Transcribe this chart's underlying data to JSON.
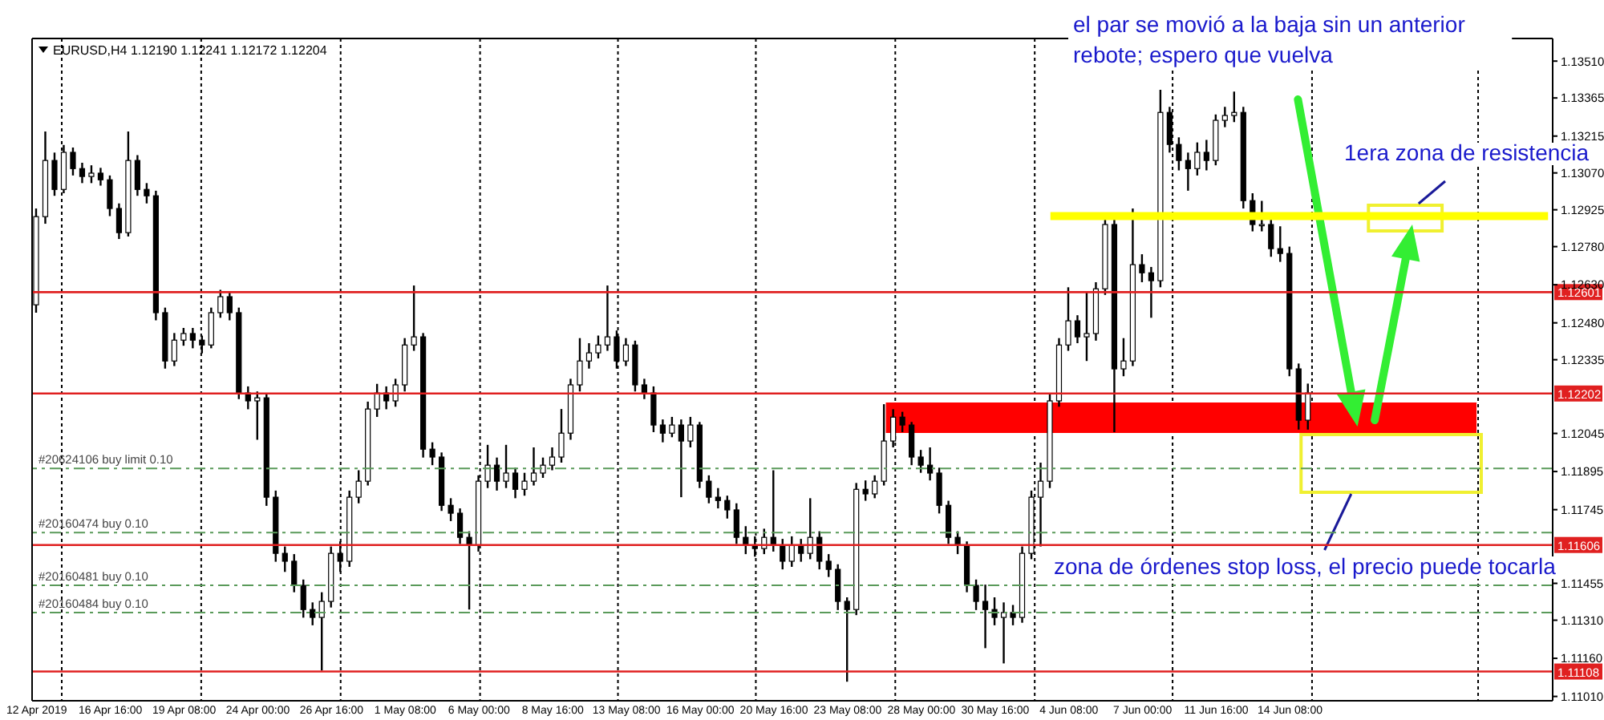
{
  "chart_data": {
    "type": "candlestick",
    "title": "EURUSD,H4  1.12190 1.12241 1.12172 1.12204",
    "categories": [
      "12 Apr 2019",
      null,
      null,
      null,
      null,
      null,
      null,
      null,
      "16 Apr 16:00",
      null,
      null,
      null,
      null,
      null,
      null,
      null,
      "19 Apr 08:00",
      null,
      null,
      null,
      null,
      null,
      null,
      null,
      "24 Apr 00:00",
      null,
      null,
      null,
      null,
      null,
      null,
      null,
      "26 Apr 16:00",
      null,
      null,
      null,
      null,
      null,
      null,
      null,
      "1 May 08:00",
      null,
      null,
      null,
      null,
      null,
      null,
      null,
      "6 May 00:00",
      null,
      null,
      null,
      null,
      null,
      null,
      null,
      "8 May 16:00",
      null,
      null,
      null,
      null,
      null,
      null,
      null,
      "13 May 08:00",
      null,
      null,
      null,
      null,
      null,
      null,
      null,
      "16 May 00:00",
      null,
      null,
      null,
      null,
      null,
      null,
      null,
      "20 May 16:00",
      null,
      null,
      null,
      null,
      null,
      null,
      null,
      "23 May 08:00",
      null,
      null,
      null,
      null,
      null,
      null,
      null,
      "28 May 00:00",
      null,
      null,
      null,
      null,
      null,
      null,
      null,
      "30 May 16:00",
      null,
      null,
      null,
      null,
      null,
      null,
      null,
      "4 Jun 08:00",
      null,
      null,
      null,
      null,
      null,
      null,
      null,
      "7 Jun 00:00",
      null,
      null,
      null,
      null,
      null,
      null,
      null,
      "11 Jun 16:00",
      null,
      null,
      null,
      null,
      null,
      null,
      null,
      "14 Jun 08:00",
      null,
      null,
      null,
      null,
      null,
      null,
      null,
      null,
      null,
      null,
      null,
      null,
      null,
      null,
      null,
      null,
      null,
      null,
      null,
      null,
      null,
      null,
      null,
      null,
      null,
      null,
      null,
      null
    ],
    "ohlc": [
      [
        1.12551,
        1.1293,
        1.1252,
        1.12898
      ],
      [
        1.12898,
        1.13233,
        1.1287,
        1.13119
      ],
      [
        1.13119,
        1.1315,
        1.1298,
        1.13005
      ],
      [
        1.13005,
        1.1318,
        1.1299,
        1.13151
      ],
      [
        1.13151,
        1.1317,
        1.1306,
        1.13087
      ],
      [
        1.13087,
        1.1311,
        1.1303,
        1.13056
      ],
      [
        1.13056,
        1.131,
        1.1303,
        1.13069
      ],
      [
        1.13069,
        1.1309,
        1.1302,
        1.13043
      ],
      [
        1.13043,
        1.1306,
        1.129,
        1.1293
      ],
      [
        1.1293,
        1.1295,
        1.1281,
        1.12835
      ],
      [
        1.12835,
        1.13233,
        1.1282,
        1.13119
      ],
      [
        1.13119,
        1.1314,
        1.1298,
        1.13005
      ],
      [
        1.13005,
        1.1303,
        1.1295,
        1.1298
      ],
      [
        1.1298,
        1.13,
        1.1249,
        1.1252
      ],
      [
        1.1252,
        1.1254,
        1.123,
        1.1233
      ],
      [
        1.1233,
        1.1244,
        1.1231,
        1.12412
      ],
      [
        1.12412,
        1.1246,
        1.1239,
        1.12438
      ],
      [
        1.12438,
        1.1246,
        1.1238,
        1.12412
      ],
      [
        1.12412,
        1.1243,
        1.1236,
        1.12393
      ],
      [
        1.12393,
        1.1254,
        1.1238,
        1.1252
      ],
      [
        1.1252,
        1.1261,
        1.125,
        1.12583
      ],
      [
        1.12583,
        1.126,
        1.1249,
        1.1252
      ],
      [
        1.1252,
        1.1254,
        1.1218,
        1.12204
      ],
      [
        1.12204,
        1.1223,
        1.1214,
        1.12173
      ],
      [
        1.12173,
        1.1221,
        1.1202,
        1.12185
      ],
      [
        1.12185,
        1.122,
        1.1176,
        1.11794
      ],
      [
        1.11794,
        1.1182,
        1.1154,
        1.11573
      ],
      [
        1.11573,
        1.116,
        1.115,
        1.11542
      ],
      [
        1.11542,
        1.1157,
        1.1142,
        1.11447
      ],
      [
        1.11447,
        1.1147,
        1.1132,
        1.11352
      ],
      [
        1.11352,
        1.1138,
        1.1129,
        1.11321
      ],
      [
        1.11321,
        1.1142,
        1.11112,
        1.11384
      ],
      [
        1.11384,
        1.116,
        1.1136,
        1.11573
      ],
      [
        1.11573,
        1.1162,
        1.115,
        1.11542
      ],
      [
        1.11542,
        1.1182,
        1.1152,
        1.11794
      ],
      [
        1.11794,
        1.119,
        1.1177,
        1.11857
      ],
      [
        1.11857,
        1.1217,
        1.1184,
        1.12141
      ],
      [
        1.12141,
        1.1224,
        1.1211,
        1.12204
      ],
      [
        1.12204,
        1.1223,
        1.1214,
        1.12173
      ],
      [
        1.12173,
        1.1226,
        1.1215,
        1.12236
      ],
      [
        1.12236,
        1.1242,
        1.1221,
        1.12393
      ],
      [
        1.12393,
        1.12627,
        1.1237,
        1.12425
      ],
      [
        1.12425,
        1.1244,
        1.1195,
        1.11983
      ],
      [
        1.11983,
        1.1201,
        1.1192,
        1.11952
      ],
      [
        1.11952,
        1.1197,
        1.1174,
        1.11762
      ],
      [
        1.11762,
        1.1179,
        1.117,
        1.11731
      ],
      [
        1.11731,
        1.1175,
        1.1161,
        1.11636
      ],
      [
        1.11636,
        1.1166,
        1.11352,
        1.11605
      ],
      [
        1.11605,
        1.1188,
        1.1158,
        1.11857
      ],
      [
        1.11857,
        1.12,
        1.1183,
        1.1192
      ],
      [
        1.1192,
        1.1195,
        1.1182,
        1.11857
      ],
      [
        1.11857,
        1.12,
        1.1183,
        1.11889
      ],
      [
        1.11889,
        1.1191,
        1.1179,
        1.11825
      ],
      [
        1.11825,
        1.1189,
        1.118,
        1.11857
      ],
      [
        1.11857,
        1.1199,
        1.1184,
        1.11889
      ],
      [
        1.11889,
        1.1195,
        1.1187,
        1.1192
      ],
      [
        1.1192,
        1.1199,
        1.119,
        1.11952
      ],
      [
        1.11952,
        1.12141,
        1.1193,
        1.12046
      ],
      [
        1.12046,
        1.1226,
        1.1202,
        1.12236
      ],
      [
        1.12236,
        1.1242,
        1.1221,
        1.1233
      ],
      [
        1.1233,
        1.124,
        1.123,
        1.12362
      ],
      [
        1.12362,
        1.1243,
        1.1234,
        1.12393
      ],
      [
        1.12393,
        1.12627,
        1.1237,
        1.12425
      ],
      [
        1.12425,
        1.1245,
        1.123,
        1.1233
      ],
      [
        1.1233,
        1.1242,
        1.1231,
        1.12393
      ],
      [
        1.12393,
        1.1241,
        1.1221,
        1.12236
      ],
      [
        1.12236,
        1.1226,
        1.1218,
        1.12204
      ],
      [
        1.12204,
        1.1223,
        1.1205,
        1.12078
      ],
      [
        1.12078,
        1.121,
        1.1201,
        1.12046
      ],
      [
        1.12046,
        1.1211,
        1.1203,
        1.12078
      ],
      [
        1.12078,
        1.121,
        1.11794,
        1.12015
      ],
      [
        1.12015,
        1.1211,
        1.1199,
        1.12078
      ],
      [
        1.12078,
        1.1209,
        1.1183,
        1.11857
      ],
      [
        1.11857,
        1.1188,
        1.1177,
        1.11794
      ],
      [
        1.11794,
        1.1183,
        1.1175,
        1.11781
      ],
      [
        1.11781,
        1.118,
        1.1171,
        1.11744
      ],
      [
        1.11744,
        1.1177,
        1.1161,
        1.11636
      ],
      [
        1.11636,
        1.1168,
        1.1157,
        1.11605
      ],
      [
        1.11605,
        1.1164,
        1.1156,
        1.11592
      ],
      [
        1.11592,
        1.1167,
        1.1157,
        1.11636
      ],
      [
        1.11636,
        1.119,
        1.1158,
        1.11605
      ],
      [
        1.11605,
        1.1163,
        1.1151,
        1.11542
      ],
      [
        1.11542,
        1.1164,
        1.1152,
        1.11605
      ],
      [
        1.11605,
        1.1163,
        1.1154,
        1.11573
      ],
      [
        1.11573,
        1.1179,
        1.1155,
        1.11636
      ],
      [
        1.11636,
        1.1166,
        1.1151,
        1.11542
      ],
      [
        1.11542,
        1.1157,
        1.1148,
        1.1151
      ],
      [
        1.1151,
        1.1153,
        1.1135,
        1.11384
      ],
      [
        1.11384,
        1.114,
        1.11068,
        1.11352
      ],
      [
        1.11352,
        1.1185,
        1.1133,
        1.11825
      ],
      [
        1.11825,
        1.1186,
        1.1178,
        1.11807
      ],
      [
        1.11807,
        1.1188,
        1.1179,
        1.11857
      ],
      [
        1.11857,
        1.1216,
        1.1184,
        1.12015
      ],
      [
        1.12015,
        1.1214,
        1.1199,
        1.12109
      ],
      [
        1.12109,
        1.1213,
        1.1205,
        1.12078
      ],
      [
        1.12078,
        1.1209,
        1.1192,
        1.11952
      ],
      [
        1.11952,
        1.1198,
        1.1189,
        1.1192
      ],
      [
        1.1192,
        1.1199,
        1.1186,
        1.11889
      ],
      [
        1.11889,
        1.1191,
        1.1173,
        1.11762
      ],
      [
        1.11762,
        1.1178,
        1.1161,
        1.11636
      ],
      [
        1.11636,
        1.1166,
        1.1157,
        1.11605
      ],
      [
        1.11605,
        1.1162,
        1.1142,
        1.11447
      ],
      [
        1.11447,
        1.1147,
        1.1135,
        1.11384
      ],
      [
        1.11384,
        1.1145,
        1.112,
        1.11352
      ],
      [
        1.11352,
        1.114,
        1.1129,
        1.11321
      ],
      [
        1.11321,
        1.1138,
        1.1114,
        1.1134
      ],
      [
        1.1134,
        1.1137,
        1.1129,
        1.11321
      ],
      [
        1.11321,
        1.116,
        1.113,
        1.11573
      ],
      [
        1.11573,
        1.1182,
        1.1155,
        1.11794
      ],
      [
        1.11794,
        1.1193,
        1.116,
        1.11857
      ],
      [
        1.11857,
        1.122,
        1.1183,
        1.12173
      ],
      [
        1.12173,
        1.1242,
        1.1215,
        1.12393
      ],
      [
        1.12393,
        1.1262,
        1.1237,
        1.12488
      ],
      [
        1.12488,
        1.1251,
        1.124,
        1.12425
      ],
      [
        1.12425,
        1.126,
        1.1233,
        1.12438
      ],
      [
        1.12438,
        1.1264,
        1.1241,
        1.12614
      ],
      [
        1.12614,
        1.129,
        1.1259,
        1.12867
      ],
      [
        1.12867,
        1.129,
        1.1205,
        1.12299
      ],
      [
        1.12299,
        1.1242,
        1.1227,
        1.1233
      ],
      [
        1.1233,
        1.1293,
        1.1231,
        1.12709
      ],
      [
        1.12709,
        1.1275,
        1.1264,
        1.12677
      ],
      [
        1.12677,
        1.127,
        1.125,
        1.12646
      ],
      [
        1.12646,
        1.13397,
        1.1262,
        1.13308
      ],
      [
        1.13308,
        1.1333,
        1.1315,
        1.13182
      ],
      [
        1.13182,
        1.1321,
        1.1308,
        1.13119
      ],
      [
        1.13119,
        1.1315,
        1.13,
        1.13087
      ],
      [
        1.13087,
        1.1319,
        1.1306,
        1.13151
      ],
      [
        1.13151,
        1.132,
        1.1308,
        1.13119
      ],
      [
        1.13119,
        1.133,
        1.131,
        1.13277
      ],
      [
        1.13277,
        1.1333,
        1.1325,
        1.13296
      ],
      [
        1.13296,
        1.1339,
        1.1327,
        1.13308
      ],
      [
        1.13308,
        1.1333,
        1.1293,
        1.12961
      ],
      [
        1.12961,
        1.1299,
        1.1284,
        1.12867
      ],
      [
        1.12867,
        1.1296,
        1.1284,
        1.12867
      ],
      [
        1.12867,
        1.129,
        1.1274,
        1.12772
      ],
      [
        1.12772,
        1.1286,
        1.1272,
        1.12753
      ],
      [
        1.12753,
        1.1278,
        1.1227,
        1.12299
      ],
      [
        1.12299,
        1.1232,
        1.1206,
        1.12097
      ],
      [
        1.12097,
        1.12241,
        1.1206,
        1.12204
      ],
      null,
      null,
      null,
      null,
      null,
      null,
      null,
      null,
      null,
      null,
      null,
      null,
      null,
      null,
      null,
      null,
      null,
      null,
      null,
      null,
      null,
      null,
      null,
      null,
      null,
      null
    ],
    "series": [
      {
        "type": "line",
        "color": "#ffff00",
        "values": [
          null,
          null,
          null,
          null,
          null,
          null,
          null,
          null,
          null,
          null,
          null,
          null,
          null,
          null,
          null,
          null,
          null,
          null,
          null,
          null,
          null,
          null,
          null,
          null,
          null,
          null,
          null,
          null,
          null,
          null,
          null,
          null,
          null,
          null,
          null,
          null,
          null,
          null,
          null,
          null,
          null,
          null,
          null,
          null,
          null,
          null,
          null,
          null,
          null,
          null,
          null,
          null,
          null,
          null,
          null,
          null,
          null,
          null,
          null,
          null,
          null,
          null,
          null,
          null,
          null,
          null,
          null,
          null,
          null,
          null,
          null,
          null,
          null,
          null,
          null,
          null,
          null,
          null,
          null,
          null,
          null,
          null,
          null,
          null,
          null,
          null,
          null,
          null,
          null,
          null,
          null,
          null,
          null,
          null,
          null,
          null,
          null,
          null,
          null,
          null,
          null,
          null,
          null,
          null,
          null,
          null,
          null,
          null,
          null,
          null,
          1.129,
          1.129,
          1.129,
          1.129,
          1.129,
          1.129,
          1.129,
          1.129,
          1.129,
          1.129,
          1.129,
          1.129,
          1.129,
          1.129,
          1.129,
          1.129,
          1.129,
          1.129,
          1.129,
          1.129,
          1.129,
          1.129,
          1.129,
          1.129,
          1.129,
          1.129,
          1.129,
          1.129,
          1.129,
          1.129,
          1.129,
          1.129,
          1.129,
          1.129,
          1.129,
          1.129,
          1.129,
          1.129,
          1.129,
          1.129,
          1.129,
          1.129,
          1.129,
          1.129,
          1.129,
          1.129,
          1.129,
          1.129,
          1.129,
          1.129,
          1.129,
          1.129,
          1.129,
          1.129,
          1.129
        ]
      }
    ],
    "ylim": [
      1.10993,
      1.13599
    ],
    "yticks": [
      {
        "value": 1.1351,
        "label": "1.13510"
      },
      1.13365,
      1.13215,
      {
        "value": 1.1307,
        "label": "1.13070"
      },
      1.12925,
      {
        "value": 1.1278,
        "label": "1.12780"
      },
      {
        "value": 1.1263,
        "label": "1.12630"
      },
      {
        "value": 1.1248,
        "label": "1.12480"
      },
      1.12335,
      1.12045,
      1.11895,
      1.11745,
      1.11455,
      {
        "value": 1.1131,
        "label": "1.11310"
      },
      {
        "value": 1.1116,
        "label": "1.11160"
      },
      {
        "value": 1.1101,
        "label": "1.11010"
      }
    ],
    "ref_lines": [
      {
        "axis": "y",
        "value": 1.12601,
        "label": "1.12601",
        "color": "#e02020",
        "line_style": "solid"
      },
      {
        "axis": "y",
        "value": 1.12202,
        "label": "1.12202",
        "color": "#e02020",
        "line_style": "solid"
      },
      {
        "axis": "y",
        "value": 1.11606,
        "label": "1.11606",
        "color": "#e02020",
        "line_style": "solid"
      },
      {
        "axis": "y",
        "value": 1.11108,
        "label": "1.11108",
        "color": "#e02020",
        "line_style": "solid"
      },
      {
        "axis": "y",
        "value": 1.11907,
        "label": "#20624106 buy limit 0.10",
        "color": "#5a9a5a",
        "line_style": "dashed"
      },
      {
        "axis": "y",
        "value": 1.11655,
        "label": "#20160474 buy 0.10",
        "color": "#5a9a5a",
        "line_style": "dashed"
      },
      {
        "axis": "y",
        "value": 1.11447,
        "label": "#20160481 buy 0.10",
        "color": "#5a9a5a",
        "line_style": "dashed"
      },
      {
        "axis": "y",
        "value": 1.1134,
        "label": "#20160484 buy 0.10",
        "color": "#5a9a5a",
        "line_style": "dashed"
      }
    ],
    "annotations": [
      "el par se movió a la baja sin un anterior\nrebote; espero que vuelva",
      "1era zona de resistencia",
      "zona de órdenes stop loss, el precio puede tocarla"
    ]
  }
}
